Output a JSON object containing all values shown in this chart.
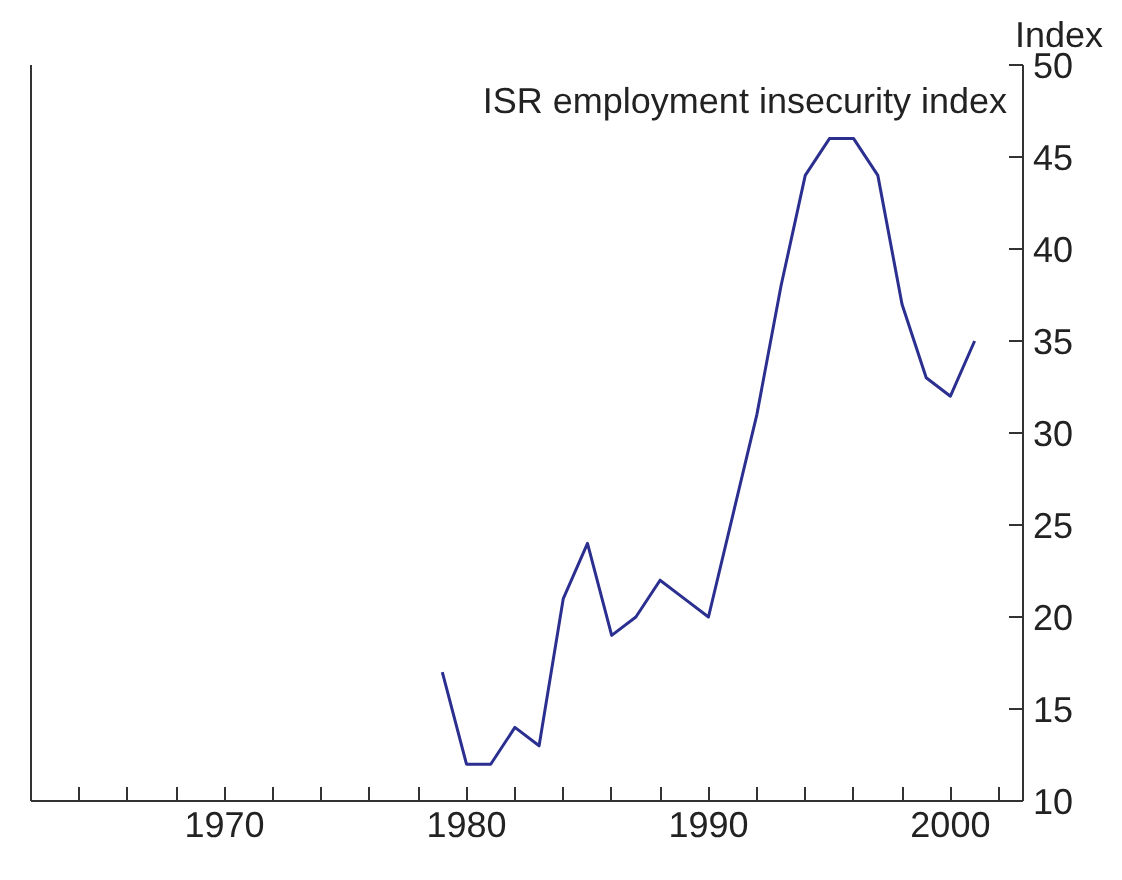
{
  "chart_data": {
    "type": "line",
    "ylabel": "Index",
    "x": [
      1979,
      1980,
      1981,
      1982,
      1983,
      1984,
      1985,
      1986,
      1987,
      1988,
      1989,
      1990,
      1991,
      1992,
      1993,
      1994,
      1995,
      1996,
      1997,
      1998,
      1999,
      2000,
      2001
    ],
    "series": [
      {
        "name": "ISR employment insecurity index",
        "color": "#2b2f8f",
        "values": [
          17,
          12,
          12,
          14,
          13,
          21,
          24,
          19,
          20,
          22,
          21,
          20,
          25.5,
          31,
          38,
          44,
          46,
          46,
          44,
          37,
          33,
          32,
          35
        ]
      }
    ],
    "xlim": [
      1962,
      2003
    ],
    "xticks": [
      {
        "value": 1964,
        "label": null
      },
      {
        "value": 1966,
        "label": null
      },
      {
        "value": 1968,
        "label": null
      },
      1970,
      {
        "value": 1972,
        "label": null
      },
      {
        "value": 1974,
        "label": null
      },
      {
        "value": 1976,
        "label": null
      },
      {
        "value": 1978,
        "label": null
      },
      1980,
      {
        "value": 1982,
        "label": null
      },
      {
        "value": 1984,
        "label": null
      },
      {
        "value": 1986,
        "label": null
      },
      {
        "value": 1988,
        "label": null
      },
      1990,
      {
        "value": 1992,
        "label": null
      },
      {
        "value": 1994,
        "label": null
      },
      {
        "value": 1996,
        "label": null
      },
      {
        "value": 1998,
        "label": null
      },
      2000,
      {
        "value": 2002,
        "label": null
      }
    ],
    "ylim": [
      10,
      50
    ],
    "yticks": [
      10,
      15,
      20,
      25,
      30,
      35,
      40,
      45,
      50
    ],
    "grid": false,
    "line_style": "solid",
    "marker": "none"
  }
}
